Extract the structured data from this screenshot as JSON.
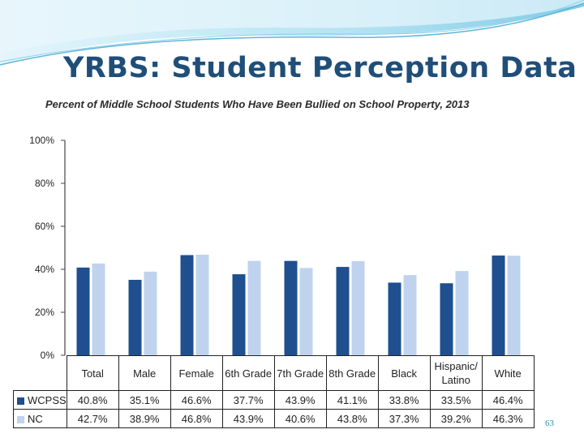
{
  "slide": {
    "title": "YRBS:  Student Perception Data",
    "page_number": "63"
  },
  "colors": {
    "wcpss": "#1f4f8f",
    "nc": "#bfd3ee",
    "title_text": "#1f4e79",
    "banner": "#7fcde6"
  },
  "chart_data": {
    "type": "bar",
    "title": "Percent of Middle School Students Who Have Been Bullied on School Property, 2013",
    "categories": [
      "Total",
      "Male",
      "Female",
      "6th Grade",
      "7th Grade",
      "8th Grade",
      "Black",
      "Hispanic/ Latino",
      "White"
    ],
    "series": [
      {
        "name": "WCPSS",
        "values": [
          40.8,
          35.1,
          46.6,
          37.7,
          43.9,
          41.1,
          33.8,
          33.5,
          46.4
        ],
        "labels": [
          "40.8%",
          "35.1%",
          "46.6%",
          "37.7%",
          "43.9%",
          "41.1%",
          "33.8%",
          "33.5%",
          "46.4%"
        ]
      },
      {
        "name": "NC",
        "values": [
          42.7,
          38.9,
          46.8,
          43.9,
          40.6,
          43.8,
          37.3,
          39.2,
          46.3
        ],
        "labels": [
          "42.7%",
          "38.9%",
          "46.8%",
          "43.9%",
          "40.6%",
          "43.8%",
          "37.3%",
          "39.2%",
          "46.3%"
        ]
      }
    ],
    "ylim": [
      0,
      100
    ],
    "yticks": [
      "0%",
      "20%",
      "40%",
      "60%",
      "80%",
      "100%"
    ],
    "grid": false,
    "legend": "in data table"
  }
}
